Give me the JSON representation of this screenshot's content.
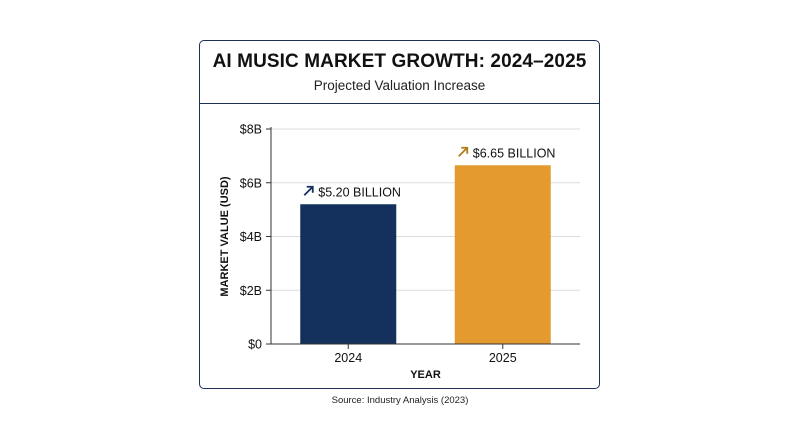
{
  "chart_data": {
    "type": "bar",
    "title": "AI MUSIC MARKET GROWTH: 2024–2025",
    "subtitle": "Projected Valuation Increase",
    "xlabel": "YEAR",
    "ylabel": "MARKET VALUE (USD)",
    "categories": [
      "2024",
      "2025"
    ],
    "values": [
      5.2,
      6.65
    ],
    "data_labels": [
      "$5.20 BILLION",
      "$6.65 BILLION"
    ],
    "colors": [
      "#14305c",
      "#e59a2f"
    ],
    "label_arrow_colors": [
      "#14305c",
      "#b07a17"
    ],
    "ylim": [
      0,
      8
    ],
    "yticks": [
      0,
      2,
      4,
      6,
      8
    ],
    "ytick_labels": [
      "$0",
      "$2B",
      "$4B",
      "$6B",
      "$8B"
    ],
    "grid": true,
    "legend": "none"
  },
  "source": "Source: Industry Analysis (2023)"
}
